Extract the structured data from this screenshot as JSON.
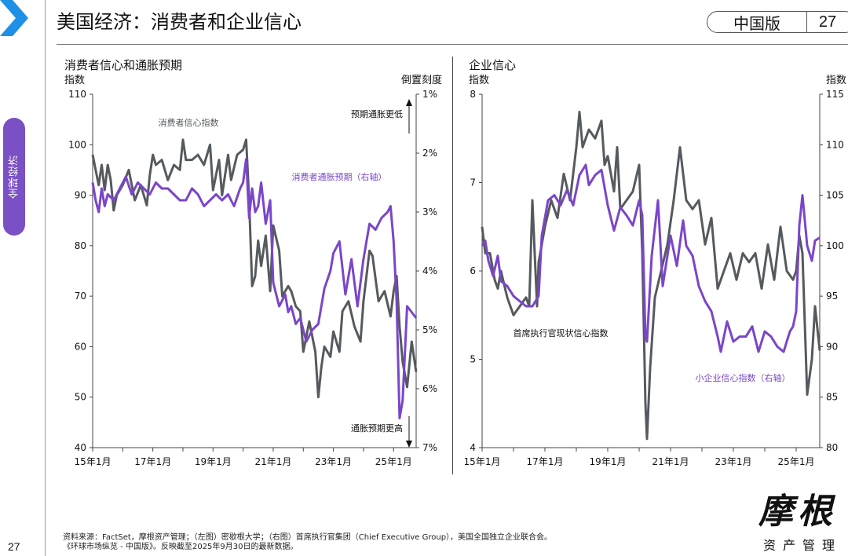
{
  "header": {
    "title": "美国经济：消费者和企业信心",
    "edition": "中国版",
    "page": "27"
  },
  "sidebar": {
    "tab_label": "全球经济",
    "page_number": "27"
  },
  "colors": {
    "gray": "#555a5e",
    "purple": "#7a46c8",
    "accent_blue": "#1e90e6"
  },
  "chart_data": [
    {
      "type": "line",
      "title": "消费者信心和通胀预期",
      "ylabel_left": "指数",
      "ylabel_right": "倒置刻度",
      "ylim_left": [
        40,
        110
      ],
      "yticks_left": [
        "110",
        "100",
        "90",
        "80",
        "70",
        "60",
        "50",
        "40"
      ],
      "ylim_right": [
        1,
        7
      ],
      "yticks_right": [
        "1%",
        "2%",
        "3%",
        "4%",
        "5%",
        "6%",
        "7%"
      ],
      "x_range": [
        2015.0,
        2025.75
      ],
      "x_ticks": [
        "15年1月",
        "17年1月",
        "19年1月",
        "21年1月",
        "23年1月",
        "25年1月"
      ],
      "annotations": {
        "up_arrow": "预期通胀更低",
        "down_arrow": "通胀预期更高"
      },
      "series": [
        {
          "name": "消费者信心指数",
          "axis": "left",
          "color": "#555a5e",
          "x": [
            2015.0,
            2015.1,
            2015.2,
            2015.3,
            2015.4,
            2015.5,
            2015.6,
            2015.7,
            2015.8,
            2015.9,
            2016.0,
            2016.2,
            2016.4,
            2016.6,
            2016.8,
            2016.9,
            2017.0,
            2017.1,
            2017.3,
            2017.5,
            2017.7,
            2017.9,
            2018.0,
            2018.1,
            2018.3,
            2018.5,
            2018.7,
            2018.9,
            2019.0,
            2019.2,
            2019.3,
            2019.5,
            2019.6,
            2019.8,
            2020.0,
            2020.1,
            2020.2,
            2020.3,
            2020.4,
            2020.5,
            2020.6,
            2020.75,
            2020.9,
            2021.0,
            2021.2,
            2021.3,
            2021.5,
            2021.6,
            2021.75,
            2021.9,
            2022.0,
            2022.2,
            2022.4,
            2022.5,
            2022.6,
            2022.7,
            2022.9,
            2023.0,
            2023.2,
            2023.3,
            2023.5,
            2023.7,
            2023.9,
            2024.0,
            2024.2,
            2024.3,
            2024.5,
            2024.7,
            2024.9,
            2025.0,
            2025.1,
            2025.2,
            2025.3,
            2025.45,
            2025.6,
            2025.75
          ],
          "values": [
            98,
            95,
            92,
            96,
            91,
            96,
            93,
            87,
            90,
            91,
            92,
            95,
            89,
            92,
            88,
            94,
            98,
            96,
            97,
            93,
            96,
            95,
            101,
            97,
            97,
            98,
            96,
            100,
            91,
            97,
            90,
            98,
            93,
            98,
            99,
            101,
            89,
            72,
            74,
            81,
            76,
            82,
            71,
            84,
            79,
            70,
            72,
            71,
            68,
            67,
            59,
            65,
            59,
            50,
            56,
            60,
            58,
            63,
            59,
            67,
            69,
            64,
            61,
            69,
            79,
            78,
            69,
            71,
            66,
            71,
            74,
            64,
            57,
            52,
            61,
            55
          ]
        },
        {
          "name": "消费者通胀预期（右轴）",
          "axis": "right",
          "color": "#7a46c8",
          "x": [
            2015.0,
            2015.1,
            2015.2,
            2015.3,
            2015.4,
            2015.5,
            2015.7,
            2015.9,
            2016.1,
            2016.3,
            2016.5,
            2016.7,
            2016.9,
            2017.1,
            2017.3,
            2017.5,
            2017.7,
            2017.9,
            2018.1,
            2018.3,
            2018.5,
            2018.7,
            2018.9,
            2019.1,
            2019.3,
            2019.5,
            2019.7,
            2019.9,
            2020.0,
            2020.1,
            2020.2,
            2020.3,
            2020.4,
            2020.5,
            2020.6,
            2020.75,
            2020.9,
            2021.0,
            2021.2,
            2021.4,
            2021.5,
            2021.6,
            2021.75,
            2021.9,
            2022.1,
            2022.3,
            2022.5,
            2022.7,
            2022.9,
            2023.0,
            2023.2,
            2023.4,
            2023.6,
            2023.8,
            2024.0,
            2024.2,
            2024.4,
            2024.6,
            2024.8,
            2024.9,
            2025.0,
            2025.1,
            2025.2,
            2025.3,
            2025.45,
            2025.6,
            2025.75
          ],
          "values": [
            2.5,
            2.8,
            3.0,
            2.6,
            2.9,
            2.7,
            2.8,
            2.6,
            2.4,
            2.7,
            2.5,
            2.6,
            2.7,
            2.5,
            2.6,
            2.6,
            2.7,
            2.8,
            2.8,
            2.6,
            2.7,
            2.9,
            2.8,
            2.7,
            2.8,
            2.7,
            2.9,
            2.6,
            2.5,
            2.1,
            3.1,
            2.6,
            3.0,
            2.9,
            2.5,
            3.2,
            2.8,
            4.2,
            4.6,
            4.4,
            4.7,
            4.6,
            4.9,
            4.8,
            5.2,
            5.0,
            4.9,
            4.3,
            4.0,
            3.7,
            3.5,
            4.4,
            3.8,
            4.6,
            3.8,
            3.2,
            3.3,
            3.1,
            3.0,
            2.9,
            3.5,
            4.5,
            6.5,
            6.2,
            4.6,
            4.7,
            4.8
          ]
        }
      ]
    },
    {
      "type": "line",
      "title": "企业信心",
      "ylabel_left": "指数",
      "ylabel_right": "指数",
      "ylim_left": [
        4,
        8
      ],
      "yticks_left": [
        "8",
        "7",
        "6",
        "5",
        "4"
      ],
      "ylim_right": [
        80,
        115
      ],
      "yticks_right": [
        "115",
        "110",
        "105",
        "100",
        "95",
        "90",
        "85",
        "80"
      ],
      "x_range": [
        2015.0,
        2025.75
      ],
      "x_ticks": [
        "15年1月",
        "17年1月",
        "19年1月",
        "21年1月",
        "23年1月",
        "25年1月"
      ],
      "series": [
        {
          "name": "首席执行官现状信心指数",
          "axis": "left",
          "color": "#555a5e",
          "x": [
            2015.0,
            2015.1,
            2015.25,
            2015.4,
            2015.5,
            2015.6,
            2015.8,
            2016.0,
            2016.2,
            2016.4,
            2016.5,
            2016.6,
            2016.75,
            2016.8,
            2017.0,
            2017.2,
            2017.4,
            2017.6,
            2017.8,
            2018.0,
            2018.1,
            2018.2,
            2018.4,
            2018.6,
            2018.8,
            2018.9,
            2019.0,
            2019.2,
            2019.3,
            2019.4,
            2019.6,
            2019.8,
            2020.0,
            2020.1,
            2020.2,
            2020.25,
            2020.35,
            2020.5,
            2020.7,
            2020.9,
            2021.1,
            2021.3,
            2021.5,
            2021.7,
            2021.9,
            2022.1,
            2022.3,
            2022.5,
            2022.7,
            2022.9,
            2023.1,
            2023.3,
            2023.5,
            2023.7,
            2023.9,
            2024.1,
            2024.3,
            2024.5,
            2024.7,
            2024.9,
            2025.0,
            2025.1,
            2025.2,
            2025.35,
            2025.5,
            2025.6,
            2025.75
          ],
          "values": [
            6.5,
            6.2,
            6.2,
            5.9,
            5.8,
            6.0,
            5.7,
            5.5,
            5.6,
            5.7,
            5.6,
            6.8,
            5.6,
            6.1,
            6.5,
            6.8,
            6.6,
            7.1,
            6.8,
            7.4,
            7.8,
            7.4,
            7.6,
            7.5,
            7.7,
            7.2,
            7.3,
            6.9,
            7.4,
            6.7,
            6.8,
            6.9,
            7.2,
            6.2,
            4.5,
            4.1,
            4.9,
            5.7,
            6.0,
            6.3,
            6.8,
            7.4,
            6.8,
            6.7,
            6.8,
            6.3,
            6.6,
            5.8,
            6.0,
            6.2,
            5.9,
            6.2,
            6.1,
            6.2,
            5.8,
            6.3,
            5.9,
            6.5,
            6.0,
            5.9,
            6.0,
            6.4,
            6.2,
            4.6,
            5.0,
            5.6,
            5.1
          ]
        },
        {
          "name": "小企业信心指数（右轴）",
          "axis": "right",
          "color": "#7a46c8",
          "x": [
            2015.0,
            2015.1,
            2015.2,
            2015.35,
            2015.5,
            2015.6,
            2015.8,
            2016.0,
            2016.2,
            2016.4,
            2016.6,
            2016.8,
            2016.9,
            2017.1,
            2017.3,
            2017.5,
            2017.7,
            2017.9,
            2018.1,
            2018.3,
            2018.4,
            2018.6,
            2018.8,
            2019.0,
            2019.2,
            2019.4,
            2019.6,
            2019.8,
            2020.0,
            2020.1,
            2020.2,
            2020.25,
            2020.4,
            2020.6,
            2020.75,
            2020.9,
            2021.0,
            2021.2,
            2021.4,
            2021.5,
            2021.7,
            2021.9,
            2022.1,
            2022.3,
            2022.5,
            2022.6,
            2022.8,
            2023.0,
            2023.2,
            2023.4,
            2023.6,
            2023.8,
            2024.0,
            2024.2,
            2024.4,
            2024.6,
            2024.8,
            2024.9,
            2025.0,
            2025.1,
            2025.2,
            2025.35,
            2025.5,
            2025.6,
            2025.75
          ],
          "values": [
            100,
            100.5,
            98.5,
            97,
            99,
            96.5,
            96,
            95,
            94.5,
            94,
            94,
            95,
            101,
            104.5,
            105,
            104,
            105.5,
            104,
            107,
            108,
            106,
            107,
            107.5,
            104,
            101.5,
            103.8,
            103,
            102,
            104.5,
            103,
            91,
            90.5,
            99,
            104.5,
            96,
            99,
            101,
            98,
            102.5,
            100,
            99,
            96,
            94.5,
            93.5,
            91,
            89.5,
            92.5,
            90.5,
            91,
            91,
            92,
            89.5,
            91.5,
            91,
            90,
            89.5,
            91.5,
            92,
            93.5,
            102,
            105,
            100,
            98.5,
            100.5,
            100.8
          ]
        }
      ]
    }
  ],
  "labels": {
    "left_series_gray": "消费者信心指数",
    "left_series_purple": "消费者通胀预期（右轴）",
    "right_series_gray": "首席执行官现状信心指数",
    "right_series_purple": "小企业信心指数（右轴）"
  },
  "footer": {
    "source_line1": "资料来源：FactSet，摩根资产管理；（左图）密歇根大学；（右图）首席执行官集团（Chief Executive Group），美国全国独立企业联合会。",
    "source_line2": "《环球市场纵览 - 中国版》。反映截至2025年9月30日的最新数据。"
  },
  "logo": {
    "main": "摩根",
    "sub": "资产管理"
  }
}
